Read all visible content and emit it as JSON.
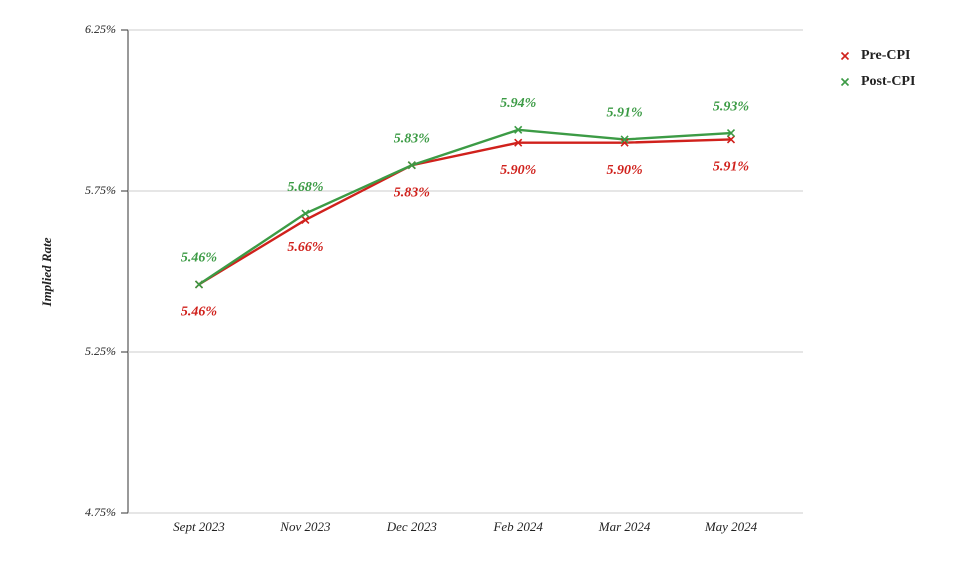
{
  "chart_data": {
    "type": "line",
    "y_label": "Implied Rate",
    "categories": [
      "Sept 2023",
      "Nov 2023",
      "Dec 2023",
      "Feb 2024",
      "Mar 2024",
      "May 2024"
    ],
    "series": [
      {
        "name": "Pre-CPI",
        "color": "#d0211c",
        "values": [
          5.46,
          5.66,
          5.83,
          5.9,
          5.9,
          5.91
        ],
        "value_labels": [
          "5.46%",
          "5.66%",
          "5.83%",
          "5.90%",
          "5.90%",
          "5.91%"
        ]
      },
      {
        "name": "Post-CPI",
        "color": "#3c9b45",
        "values": [
          5.46,
          5.68,
          5.83,
          5.94,
          5.91,
          5.93
        ],
        "value_labels": [
          "5.46%",
          "5.68%",
          "5.83%",
          "5.94%",
          "5.91%",
          "5.93%"
        ]
      }
    ],
    "ylim": [
      4.75,
      6.25
    ],
    "yticks": [
      {
        "value": 4.75,
        "label": "4.75%"
      },
      {
        "value": 5.25,
        "label": "5.25%"
      },
      {
        "value": 5.75,
        "label": "5.75%"
      },
      {
        "value": 6.25,
        "label": "6.25%"
      }
    ],
    "grid": true,
    "legend": "top-right"
  }
}
